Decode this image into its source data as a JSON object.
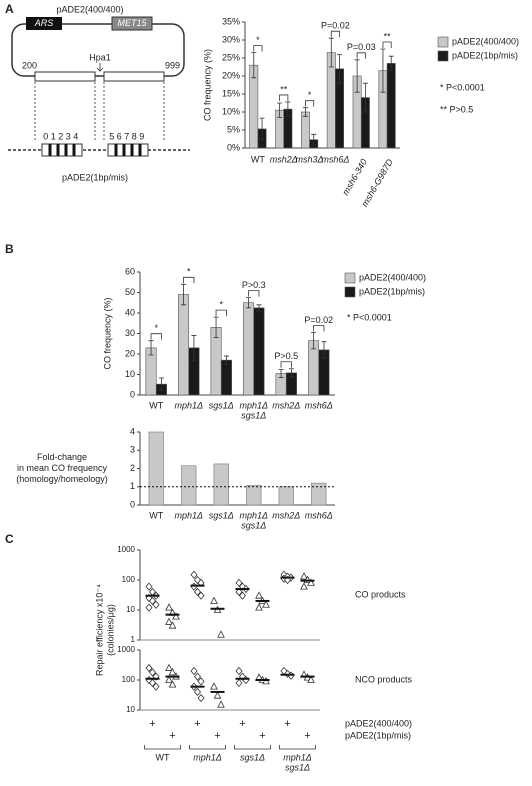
{
  "panel_labels": [
    "A",
    "B",
    "C"
  ],
  "diagram": {
    "title": "pADE2(400/400)",
    "ars": "ARS",
    "met15": "MET15",
    "left_coord": "200",
    "right_coord": "999",
    "site": "Hpa1",
    "left_markers": "01234",
    "right_markers": "56789",
    "caption": "pADE2(1bp/mis)"
  },
  "chart_data": [
    {
      "type": "bar",
      "ylabel": "CO frequency (%)",
      "categories": [
        "WT",
        "msh2Δ",
        "msh3Δ",
        "msh6Δ",
        "msh6-340",
        "msh6-G987D"
      ],
      "series": [
        {
          "name": "pADE2(400/400)",
          "color": "#c8c8c8",
          "values": [
            23,
            10.5,
            10,
            26.5,
            20,
            21.5
          ],
          "errors": [
            3.5,
            2,
            1.2,
            4,
            4.5,
            6
          ]
        },
        {
          "name": "pADE2(1bp/mis)",
          "color": "#1a1a1a",
          "values": [
            5.3,
            10.8,
            2.3,
            22,
            14,
            23.5
          ],
          "errors": [
            3,
            2,
            1.5,
            4,
            4,
            2
          ]
        }
      ],
      "ylim": [
        0,
        35
      ],
      "yticks": [
        {
          "value": 0,
          "label": "0%"
        },
        {
          "value": 5,
          "label": "5%"
        },
        {
          "value": 10,
          "label": "10%"
        },
        {
          "value": 15,
          "label": "15%"
        },
        {
          "value": 20,
          "label": "20%"
        },
        {
          "value": 25,
          "label": "25%"
        },
        {
          "value": 30,
          "label": "30%"
        },
        {
          "value": 35,
          "label": "35%"
        }
      ],
      "annotations": [
        "*",
        "**",
        "*",
        "P=0.02",
        "P=0.03",
        "**"
      ],
      "notes": [
        "* P<0.0001",
        "** P>0.5"
      ]
    },
    {
      "type": "bar",
      "ylabel": "CO frequency (%)",
      "categories": [
        "WT",
        "mph1Δ",
        "sgs1Δ",
        [
          "mph1Δ",
          "sgs1Δ"
        ],
        "msh2Δ",
        "msh6Δ"
      ],
      "series": [
        {
          "name": "pADE2(400/400)",
          "color": "#c8c8c8",
          "values": [
            23,
            49,
            33,
            45,
            10.5,
            26.5
          ],
          "errors": [
            3.5,
            5,
            5,
            2.5,
            2,
            4
          ]
        },
        {
          "name": "pADE2(1bp/mis)",
          "color": "#1a1a1a",
          "values": [
            5.3,
            23,
            17,
            42.5,
            10.8,
            22
          ],
          "errors": [
            3,
            6,
            2,
            1.5,
            2,
            4
          ]
        }
      ],
      "ylim": [
        0,
        60
      ],
      "yticks": [
        0,
        10,
        20,
        30,
        40,
        50,
        60
      ],
      "annotations": [
        "*",
        "*",
        "*",
        "P>0.3",
        "P>0.5",
        "P=0.02"
      ],
      "notes": [
        "* P<0.0001"
      ]
    },
    {
      "type": "bar",
      "ylabel": [
        "Fold-change",
        "in mean CO frequency",
        "(homology/homeology)"
      ],
      "categories": [
        "WT",
        "mph1Δ",
        "sgs1Δ",
        [
          "mph1Δ",
          "sgs1Δ"
        ],
        "msh2Δ",
        "msh6Δ"
      ],
      "values": [
        4,
        2.15,
        2.25,
        1.07,
        1.0,
        1.2
      ],
      "color": "#c8c8c8",
      "ylim": [
        0,
        4
      ],
      "yticks": [
        0,
        1,
        2,
        3,
        4
      ],
      "reference_line": 1
    },
    {
      "type": "strip",
      "ylabel": [
        "Repair efficiency x10⁻⁴",
        "(colonies/μg)"
      ],
      "log_scale": true,
      "groups": [
        "WT",
        "mph1Δ",
        "sgs1Δ",
        [
          "mph1Δ",
          "sgs1Δ"
        ]
      ],
      "marker_text": "+",
      "series": [
        {
          "name": "pADE2(400/400)",
          "marker": "diamond"
        },
        {
          "name": "pADE2(1bp/mis)",
          "marker": "triangle"
        }
      ],
      "panels": [
        {
          "label": "CO products",
          "ylim": [
            1,
            1000
          ],
          "yticks": [
            1,
            10,
            100,
            1000
          ],
          "points": [
            [
              [
                60,
                40,
                30,
                25,
                20,
                15,
                12
              ],
              [
                150,
                100,
                80,
                60,
                40,
                30
              ],
              [
                80,
                60,
                50,
                40,
                30
              ],
              [
                150,
                130,
                120,
                110,
                100
              ]
            ],
            [
              [
                12,
                8,
                6,
                4,
                3
              ],
              [
                20,
                10,
                1.5
              ],
              [
                30,
                20,
                15,
                12
              ],
              [
                130,
                100,
                80,
                60
              ]
            ]
          ],
          "medians": [
            [
              30,
              65,
              50,
              120
            ],
            [
              7,
              11,
              20,
              95
            ]
          ]
        },
        {
          "label": "NCO products",
          "ylim": [
            10,
            1000
          ],
          "yticks": [
            10,
            100,
            1000
          ],
          "points": [
            [
              [
                250,
                180,
                130,
                100,
                80,
                60
              ],
              [
                200,
                130,
                90,
                60,
                40,
                25
              ],
              [
                200,
                130,
                100,
                80
              ],
              [
                200,
                160,
                140
              ]
            ],
            [
              [
                250,
                180,
                130,
                100,
                70
              ],
              [
                60,
                30,
                15
              ],
              [
                120,
                100,
                90
              ],
              [
                150,
                120,
                100
              ]
            ]
          ],
          "medians": [
            [
              110,
              60,
              110,
              150
            ],
            [
              130,
              40,
              100,
              130
            ]
          ]
        }
      ]
    }
  ]
}
